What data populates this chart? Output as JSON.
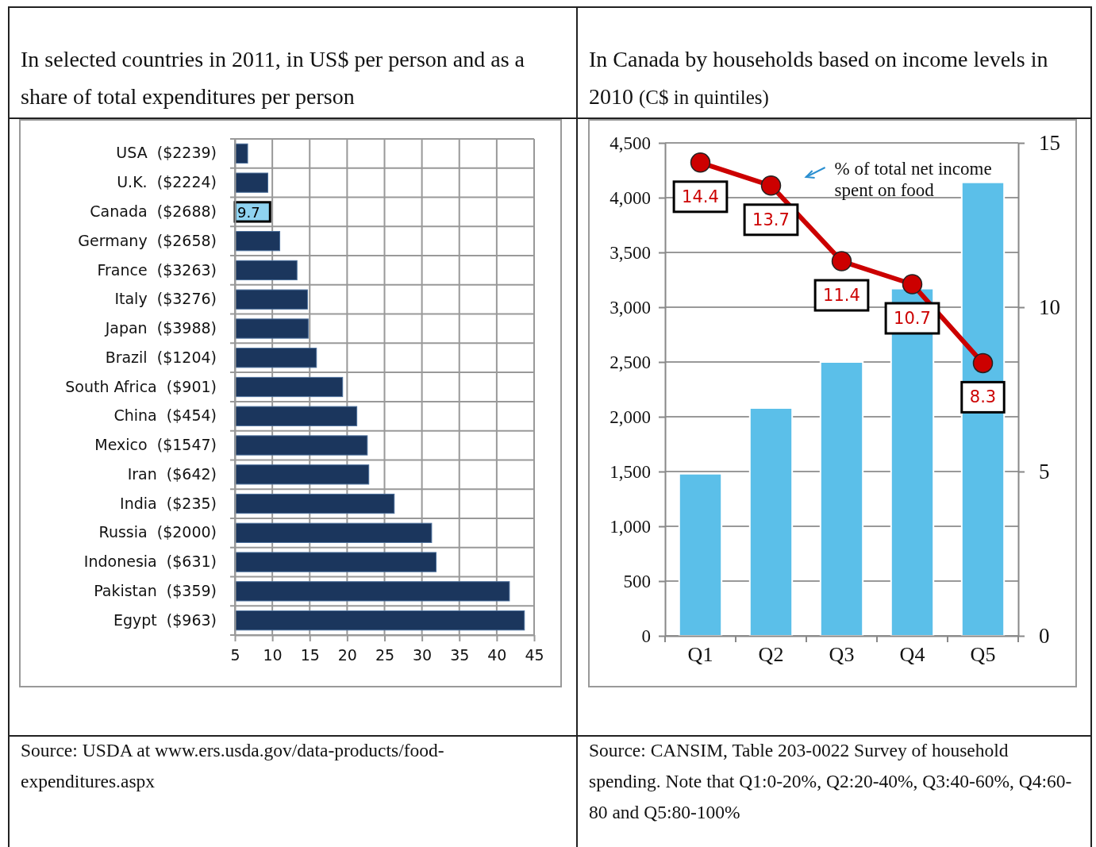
{
  "chart_data": [
    {
      "type": "bar",
      "title": "In selected countries in 2011, in US$ per person and as a share of total expenditures per person",
      "orientation": "horizontal",
      "categories": [
        "USA  ($2239)",
        "U.K.  ($2224)",
        "Canada  ($2688)",
        "Germany  ($2658)",
        "France  ($3263)",
        "Italy  ($3276)",
        "Japan  ($3988)",
        "Brazil  ($1204)",
        "South Africa  ($901)",
        "China  ($454)",
        "Mexico  ($1547)",
        "Iran  ($642)",
        "India  ($235)",
        "Russia  ($2000)",
        "Indonesia  ($631)",
        "Pakistan  ($359)",
        "Egypt  ($963)"
      ],
      "values": [
        6.7,
        9.4,
        9.7,
        11.0,
        13.3,
        14.7,
        14.8,
        15.9,
        19.4,
        21.3,
        22.7,
        22.9,
        26.3,
        31.3,
        31.9,
        41.7,
        43.7
      ],
      "colors": [
        "#1b365d",
        "#1b365d",
        "#8fd3f1",
        "#1b365d",
        "#1b365d",
        "#1b365d",
        "#1b365d",
        "#1b365d",
        "#1b365d",
        "#1b365d",
        "#1b365d",
        "#1b365d",
        "#1b365d",
        "#1b365d",
        "#1b365d",
        "#1b365d",
        "#1b365d"
      ],
      "value_labels": [
        null,
        null,
        "9.7",
        null,
        null,
        null,
        null,
        null,
        null,
        null,
        null,
        null,
        null,
        null,
        null,
        null,
        null
      ],
      "xlim": [
        5,
        45
      ],
      "xticks": [
        5,
        10,
        15,
        20,
        25,
        30,
        35,
        40,
        45
      ],
      "grid": true,
      "annotations": [
        "Source: USDA at www.ers.usda.gov/data-products/food-expenditures.aspx"
      ]
    },
    {
      "type": "bar",
      "title": "In Canada by households based on income levels in 2010",
      "subtitle": "(C$ in quintiles)",
      "categories": [
        "Q1",
        "Q2",
        "Q3",
        "Q4",
        "Q5"
      ],
      "series": [
        {
          "color": "#5bbfe9",
          "values": [
            1480,
            2080,
            2500,
            3170,
            4140
          ]
        },
        {
          "type": "line",
          "axis": "y2",
          "name": "% of total net income spent on food",
          "color": "#cc0000",
          "values": [
            14.4,
            13.7,
            11.4,
            10.7,
            8.3
          ],
          "value_labels": [
            "14.4",
            "13.7",
            "11.4",
            "10.7",
            "8.3"
          ]
        }
      ],
      "marker": "circle",
      "ylim": [
        0,
        4500
      ],
      "yticks": [
        0,
        {
          "value": 500,
          "label": "500"
        },
        {
          "value": 1000,
          "label": "1,000"
        },
        {
          "value": 1500,
          "label": "1,500"
        },
        {
          "value": 2000,
          "label": "2,000"
        },
        {
          "value": 2500,
          "label": "2,500"
        },
        {
          "value": 3000,
          "label": "3,000"
        },
        {
          "value": 3500,
          "label": "3,500"
        },
        {
          "value": 4000,
          "label": "4,000"
        },
        {
          "value": 4500,
          "label": "4,500"
        }
      ],
      "y2lim": [
        0,
        15
      ],
      "y2ticks": [
        0,
        5,
        10,
        15
      ],
      "grid": "y",
      "annotations": [
        "Source: CANSIM, Table 203-0022 Survey of household spending. Note that Q1:0-20%, Q2:20-40%, Q3:40-60%, Q4:60-80 and Q5:80-100%"
      ]
    }
  ]
}
